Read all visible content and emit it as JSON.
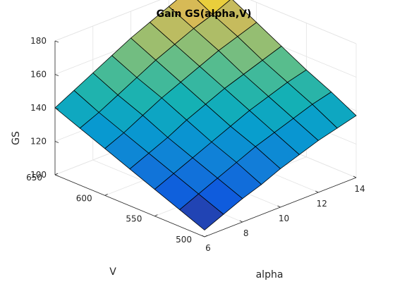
{
  "chart_data": {
    "type": "surface",
    "title": "Gain GS(alpha,V)",
    "xlabel": "alpha",
    "ylabel": "V",
    "zlabel": "GS",
    "alpha": [
      6,
      7,
      8,
      9,
      10,
      11,
      12,
      13,
      14
    ],
    "V": [
      500,
      525,
      550,
      575,
      600,
      625,
      650
    ],
    "GS": [
      [
        104,
        110,
        116,
        122,
        128,
        134,
        140
      ],
      [
        109,
        115,
        121,
        127,
        133,
        139,
        146
      ],
      [
        114,
        120,
        126,
        132,
        139,
        145,
        152
      ],
      [
        118,
        125,
        131,
        138,
        145,
        151,
        158
      ],
      [
        123,
        130,
        136,
        143,
        150,
        157,
        164
      ],
      [
        127,
        134,
        141,
        148,
        155,
        162,
        169
      ],
      [
        131,
        138,
        145,
        152,
        160,
        167,
        174
      ],
      [
        134,
        142,
        149,
        156,
        164,
        171,
        179
      ],
      [
        137,
        145,
        152,
        160,
        168,
        176,
        184
      ]
    ],
    "xlim": [
      6,
      14
    ],
    "ylim": [
      500,
      650
    ],
    "zlim": [
      100,
      180
    ],
    "xticks": [
      "6",
      "8",
      "10",
      "12",
      "14"
    ],
    "yticks": [
      "500",
      "550",
      "600",
      "650"
    ],
    "zticks": [
      "100",
      "120",
      "140",
      "160",
      "180"
    ],
    "grid": true,
    "colormap": "parula"
  }
}
